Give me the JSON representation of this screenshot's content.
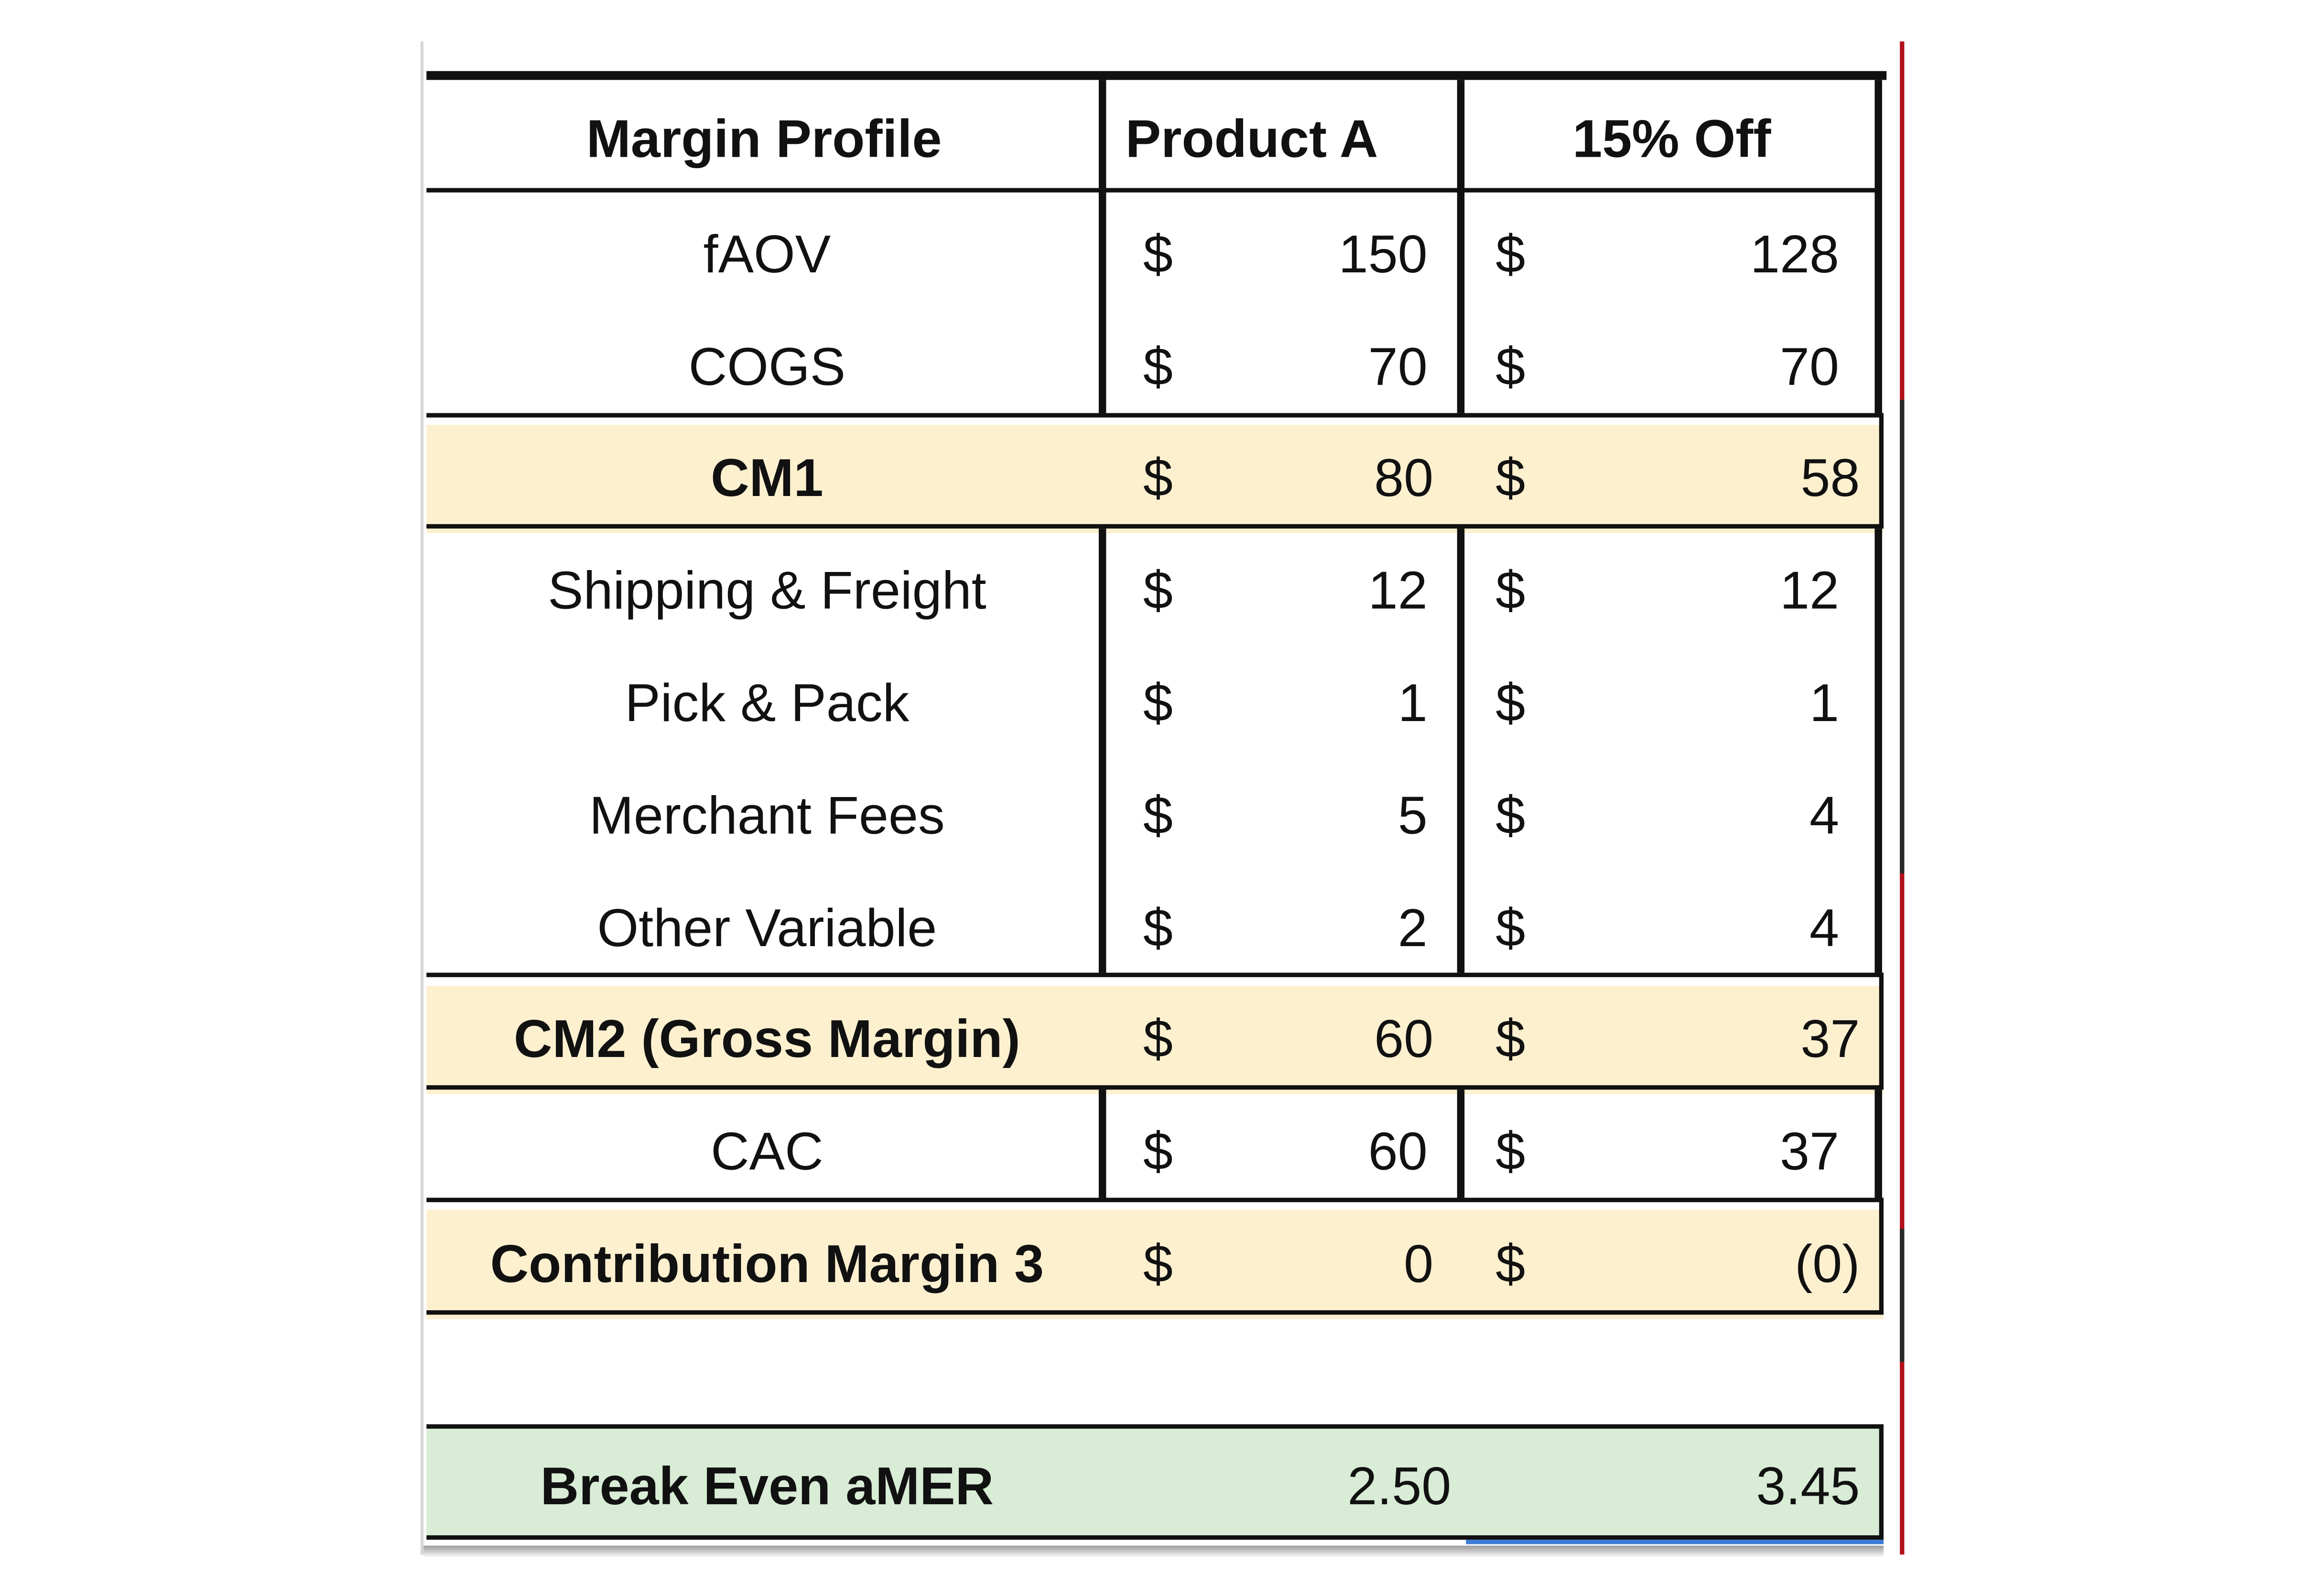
{
  "table": {
    "header": {
      "label": "Margin Profile",
      "col1": "Product A",
      "col2": "15% Off"
    },
    "currency_symbol": "$",
    "rows": [
      {
        "label": "fAOV",
        "a": "150",
        "b": "128",
        "highlight": false
      },
      {
        "label": "COGS",
        "a": "70",
        "b": "70",
        "highlight": false
      },
      {
        "label": "CM1",
        "a": "80",
        "b": "58",
        "highlight": true
      },
      {
        "label": "Shipping & Freight",
        "a": "12",
        "b": "12",
        "highlight": false
      },
      {
        "label": "Pick & Pack",
        "a": "1",
        "b": "1",
        "highlight": false
      },
      {
        "label": "Merchant Fees",
        "a": "5",
        "b": "4",
        "highlight": false
      },
      {
        "label": "Other Variable",
        "a": "2",
        "b": "4",
        "highlight": false
      },
      {
        "label": "CM2 (Gross Margin)",
        "a": "60",
        "b": "37",
        "highlight": true
      },
      {
        "label": "CAC",
        "a": "60",
        "b": "37",
        "highlight": false
      },
      {
        "label": "Contribution Margin 3",
        "a": "0",
        "b": "(0)",
        "highlight": true
      }
    ],
    "break_even": {
      "label": "Break Even aMER",
      "a": "2.50",
      "b": "3.45"
    }
  },
  "colors": {
    "highlight_row": "#fdf0cf",
    "break_even_row": "#d8ecd6",
    "sheet_edge_accent": "#b10f1b",
    "selection": "#3a7bd5"
  }
}
